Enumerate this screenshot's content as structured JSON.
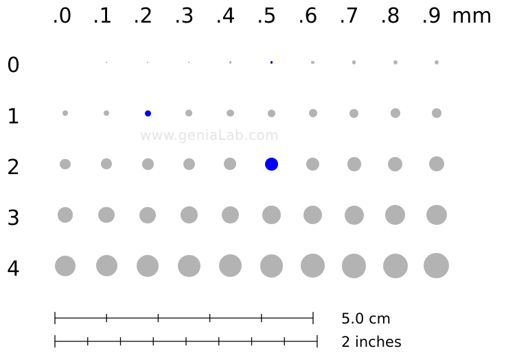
{
  "columns": [
    ".0",
    ".1",
    ".2",
    ".3",
    ".4",
    ".5",
    ".6",
    ".7",
    ".8",
    ".9"
  ],
  "unit": "mm",
  "rows": [
    "0",
    "1",
    "2",
    "3",
    "4"
  ],
  "watermark": "www.geniaLab.com",
  "colors": {
    "dot": "#b3b3b3",
    "highlight": "#0000ff"
  },
  "highlighted_sizes_mm": [
    0.5,
    1.2,
    2.5
  ],
  "scales": [
    {
      "label": "5.0 cm",
      "divisions": 5
    },
    {
      "label": "2 inches",
      "divisions": 8
    }
  ]
}
